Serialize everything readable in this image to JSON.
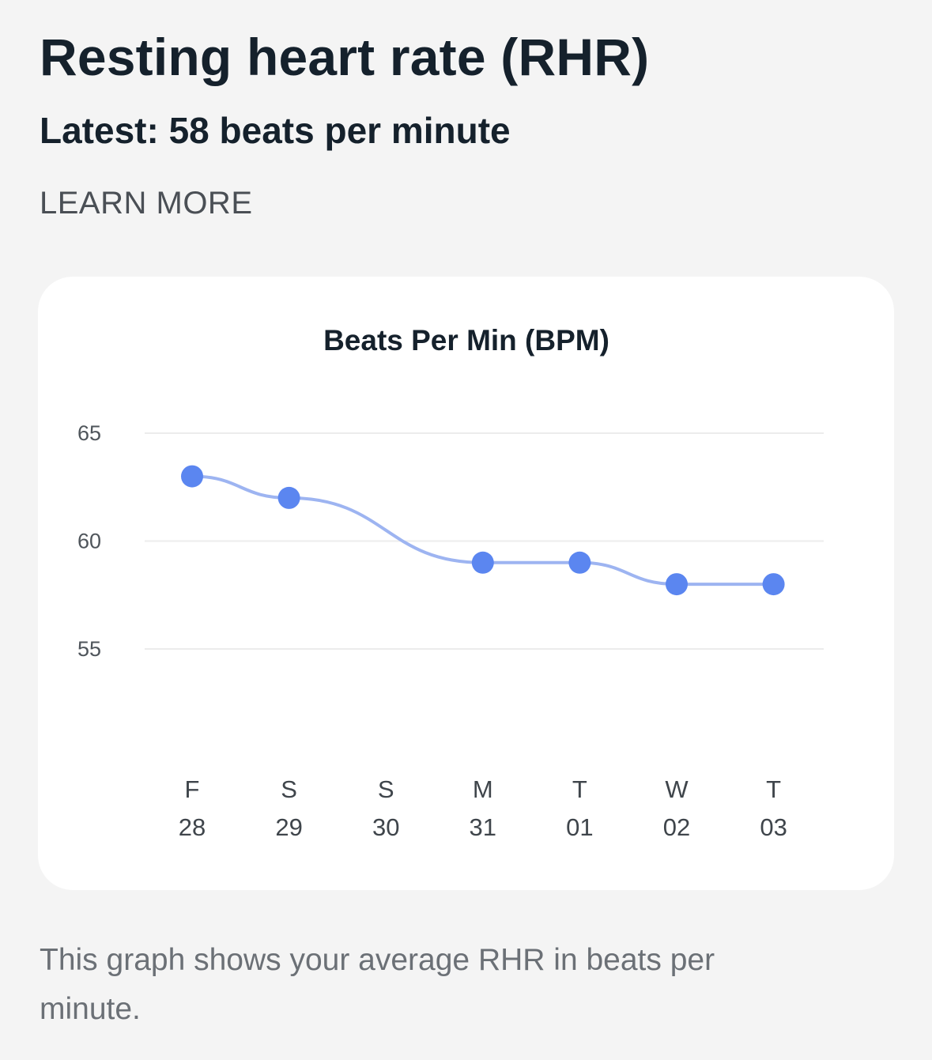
{
  "header": {
    "title": "Resting heart rate (RHR)",
    "latest": "Latest: 58 beats per minute",
    "learn_more": "LEARN MORE"
  },
  "caption": "This graph shows your average RHR in beats per minute.",
  "colors": {
    "line": "#9db4f1",
    "point": "#5b86f0",
    "grid": "#ececec"
  },
  "chart_data": {
    "type": "line",
    "title": "Beats Per Min (BPM)",
    "xlabel": "",
    "ylabel": "",
    "categories": [
      {
        "day": "F",
        "date": "28"
      },
      {
        "day": "S",
        "date": "29"
      },
      {
        "day": "S",
        "date": "30"
      },
      {
        "day": "M",
        "date": "31"
      },
      {
        "day": "T",
        "date": "01"
      },
      {
        "day": "W",
        "date": "02"
      },
      {
        "day": "T",
        "date": "03"
      }
    ],
    "values": [
      63,
      62,
      null,
      59,
      59,
      58,
      58
    ],
    "yticks": [
      55,
      60,
      65
    ],
    "ylim": [
      50,
      65
    ],
    "grid": true,
    "smooth": true
  }
}
